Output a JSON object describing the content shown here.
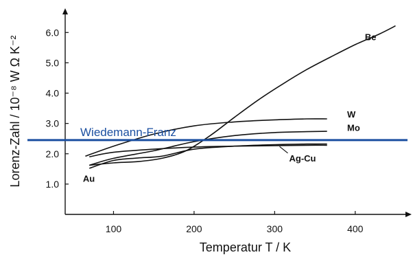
{
  "chart_data": {
    "type": "line",
    "xlabel": "Temperatur T / K",
    "ylabel": "Lorenz-Zahl / 10⁻⁸ W Ω K⁻²",
    "xlim": [
      40,
      470
    ],
    "ylim": [
      0,
      6.8
    ],
    "x_ticks": [
      100,
      200,
      300,
      400
    ],
    "x_tick_labels": [
      "100",
      "200",
      "300",
      "400"
    ],
    "y_ticks": [
      1.0,
      2.0,
      3.0,
      4.0,
      5.0,
      6.0
    ],
    "y_tick_labels": [
      "1.0",
      "2.0",
      "3.0",
      "4.0",
      "5.0",
      "6.0"
    ],
    "grid": false,
    "series": [
      {
        "name": "Be",
        "color": "#111111",
        "x": [
          70,
          100,
          130,
          160,
          190,
          220,
          250,
          280,
          310,
          340,
          370,
          400,
          430,
          450
        ],
        "y": [
          1.62,
          1.7,
          1.74,
          1.85,
          2.1,
          2.6,
          3.2,
          3.78,
          4.3,
          4.78,
          5.2,
          5.6,
          5.95,
          6.22
        ]
      },
      {
        "name": "W",
        "color": "#111111",
        "x": [
          65,
          100,
          150,
          200,
          250,
          300,
          340,
          365
        ],
        "y": [
          1.92,
          2.25,
          2.65,
          2.92,
          3.05,
          3.12,
          3.15,
          3.15
        ]
      },
      {
        "name": "Mo",
        "color": "#111111",
        "x": [
          70,
          100,
          150,
          200,
          250,
          300,
          340,
          365
        ],
        "y": [
          1.62,
          1.85,
          2.1,
          2.4,
          2.6,
          2.7,
          2.73,
          2.74
        ]
      },
      {
        "name": "Ag-Cu",
        "color": "#111111",
        "x": [
          70,
          100,
          150,
          200,
          250,
          300,
          340,
          365
        ],
        "y": [
          1.9,
          2.05,
          2.15,
          2.22,
          2.25,
          2.27,
          2.28,
          2.28
        ]
      },
      {
        "name": "Au",
        "color": "#111111",
        "x": [
          70,
          100,
          130,
          160,
          200,
          250,
          300,
          340,
          365
        ],
        "y": [
          1.52,
          1.78,
          1.86,
          1.92,
          2.15,
          2.25,
          2.3,
          2.32,
          2.32
        ]
      }
    ],
    "reference_line": {
      "label": "Wiedemann-Franz",
      "y": 2.45,
      "color": "#1b4fa0"
    },
    "series_labels": [
      {
        "text": "Be",
        "x": 412,
        "y": 5.75
      },
      {
        "text": "W",
        "x": 390,
        "y": 3.2
      },
      {
        "text": "Mo",
        "x": 390,
        "y": 2.75
      },
      {
        "text": "Ag-Cu",
        "x": 318,
        "y": 1.75
      },
      {
        "text": "Au",
        "x": 62,
        "y": 1.08
      }
    ]
  }
}
